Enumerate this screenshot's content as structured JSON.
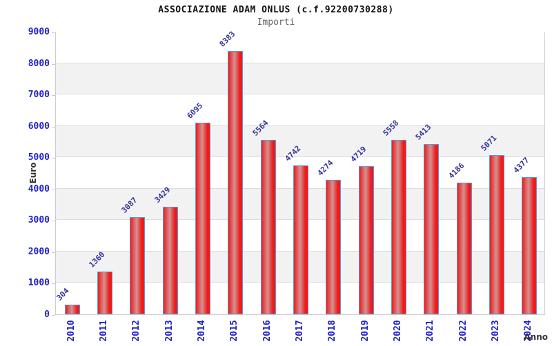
{
  "title": "ASSOCIAZIONE ADAM ONLUS (c.f.92200730288)",
  "subtitle": "Importi",
  "chart_data": {
    "type": "bar",
    "categories": [
      "2010",
      "2011",
      "2012",
      "2013",
      "2014",
      "2015",
      "2016",
      "2017",
      "2018",
      "2019",
      "2020",
      "2021",
      "2022",
      "2023",
      "2024"
    ],
    "values": [
      304,
      1360,
      3087,
      3429,
      6095,
      8383,
      5564,
      4742,
      4274,
      4719,
      5558,
      5413,
      4186,
      5071,
      4377
    ],
    "title": "ASSOCIAZIONE ADAM ONLUS (c.f.92200730288)",
    "subtitle": "Importi",
    "xlabel": "Anno",
    "ylabel": "Euro",
    "ylim": [
      0,
      9000
    ],
    "ytick_step": 1000,
    "grid": "horizontal gridlines with alternating shaded bands",
    "legend": "none",
    "value_labels": "rotated 45deg above each bar",
    "category_labels": "rotated 90deg below axis"
  },
  "colors": {
    "bar_edge": "#ed1c1c",
    "bar_center": "#d49292",
    "bar_border": "#5b9bd5",
    "tick_label_blue": "#2222cc",
    "value_label_navy": "#333399",
    "axis_title": "#333333",
    "band_gray": "#f2f2f2",
    "gridline": "#dddddd",
    "plot_border": "#cccccc",
    "title_color": "#111111",
    "subtitle_color": "#666666"
  }
}
